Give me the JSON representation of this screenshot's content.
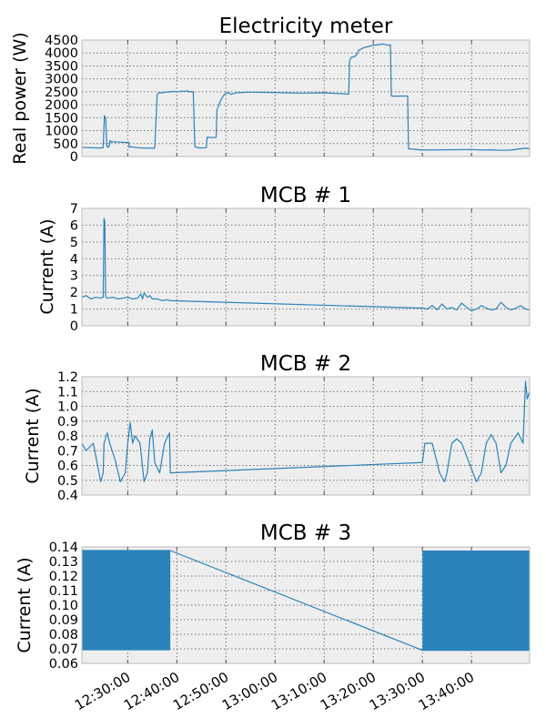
{
  "colors": {
    "series": "#2b83ba",
    "panel_bg": "#eeeeee",
    "grid": "#777777",
    "frame": "#bcbcbc"
  },
  "x_axis": {
    "type": "time",
    "range": [
      "12:20:40",
      "13:51:50"
    ],
    "tick_labels": [
      "12:30:00",
      "12:40:00",
      "12:50:00",
      "13:00:00",
      "13:10:00",
      "13:20:00",
      "13:30:00",
      "13:40:00"
    ]
  },
  "chart_data": [
    {
      "type": "line",
      "title": "Electricity meter",
      "ylabel": "Real power (W)",
      "ylim": [
        0,
        4500
      ],
      "yticks": [
        "0",
        "500",
        "1000",
        "1500",
        "2000",
        "2500",
        "3000",
        "3500",
        "4000",
        "4500"
      ],
      "grid": true,
      "series": [
        {
          "x": [
            "12:20:40",
            "12:24:30",
            "12:25:00",
            "12:25:15",
            "12:25:30",
            "12:25:45",
            "12:26:10",
            "12:26:25",
            "12:26:40",
            "12:27:00",
            "12:29:50",
            "12:30:10",
            "12:30:20",
            "12:30:40",
            "12:32:00",
            "12:33:00",
            "12:35:30",
            "12:36:00",
            "12:36:20",
            "12:37:30",
            "12:37:40",
            "12:38:20",
            "12:38:30",
            "12:39:00",
            "12:39:20",
            "12:40:00",
            "12:41:00",
            "12:41:30",
            "12:42:10",
            "12:42:30",
            "12:43:20",
            "12:43:40",
            "12:44:30",
            "12:46:00",
            "12:46:10",
            "12:47:00",
            "12:48:00",
            "12:48:10",
            "12:49:00",
            "12:49:30",
            "12:49:45",
            "12:50:10",
            "12:50:30",
            "12:51:00",
            "12:52:00",
            "12:55:00",
            "13:00:00",
            "13:05:00",
            "13:10:00",
            "13:14:00",
            "13:15:00",
            "13:15:10",
            "13:15:30",
            "13:16:00",
            "13:16:30",
            "13:17:00",
            "13:17:30",
            "13:18:00",
            "13:19:00",
            "13:20:00",
            "13:21:00",
            "13:22:00",
            "13:23:00",
            "13:23:30",
            "13:23:40",
            "13:24:00",
            "13:27:00",
            "13:27:10",
            "13:30:00",
            "13:35:00",
            "13:40:00",
            "13:42:00",
            "13:44:00",
            "13:46:00",
            "13:48:00",
            "13:50:00",
            "13:51:00",
            "13:51:50"
          ],
          "y": [
            350,
            330,
            340,
            1580,
            1500,
            380,
            360,
            620,
            550,
            570,
            540,
            560,
            350,
            380,
            340,
            330,
            320,
            2400,
            2460,
            2470,
            2500,
            2480,
            2510,
            2500,
            2520,
            2490,
            2530,
            2510,
            2540,
            2500,
            2510,
            380,
            330,
            340,
            750,
            730,
            740,
            1800,
            2200,
            2350,
            2420,
            2440,
            2480,
            2400,
            2460,
            2490,
            2470,
            2450,
            2460,
            2420,
            2410,
            3700,
            3830,
            3850,
            3900,
            4100,
            4150,
            4200,
            4250,
            4300,
            4320,
            4350,
            4300,
            4310,
            2350,
            2330,
            2340,
            300,
            250,
            260,
            270,
            250,
            260,
            240,
            250,
            300,
            320,
            300
          ]
        }
      ]
    },
    {
      "type": "line",
      "title": "MCB # 1",
      "ylabel": "Current (A)",
      "ylim": [
        0,
        7
      ],
      "yticks": [
        "0",
        "1",
        "2",
        "3",
        "4",
        "5",
        "6",
        "7"
      ],
      "grid": true,
      "series": [
        {
          "x": [
            "12:20:40",
            "12:21:30",
            "12:22:30",
            "12:23:30",
            "12:24:30",
            "12:25:00",
            "12:25:10",
            "12:25:20",
            "12:25:30",
            "12:26:00",
            "12:27:00",
            "12:28:00",
            "12:29:00",
            "12:30:00",
            "12:31:00",
            "12:32:00",
            "12:32:40",
            "12:33:00",
            "12:33:20",
            "12:34:00",
            "12:34:30",
            "12:35:00",
            "12:36:00",
            "12:37:00",
            "12:38:00",
            "12:38:40",
            "13:30:00",
            "13:31:00",
            "13:32:00",
            "13:33:00",
            "13:34:00",
            "13:35:00",
            "13:36:00",
            "13:37:00",
            "13:38:00",
            "13:39:00",
            "13:40:00",
            "13:41:00",
            "13:42:00",
            "13:43:00",
            "13:44:00",
            "13:45:00",
            "13:46:00",
            "13:47:00",
            "13:48:00",
            "13:49:00",
            "13:50:00",
            "13:51:00",
            "13:51:50"
          ],
          "y": [
            1.7,
            1.8,
            1.6,
            1.7,
            1.65,
            1.7,
            6.4,
            6.2,
            1.7,
            1.65,
            1.7,
            1.6,
            1.65,
            1.7,
            1.6,
            1.65,
            1.9,
            1.6,
            1.95,
            1.7,
            1.8,
            1.6,
            1.6,
            1.5,
            1.55,
            1.5,
            1.05,
            1.0,
            1.2,
            0.95,
            1.3,
            1.0,
            1.1,
            0.95,
            1.35,
            1.1,
            0.9,
            1.0,
            1.2,
            1.05,
            0.95,
            1.0,
            1.4,
            1.1,
            0.95,
            1.05,
            1.2,
            1.0,
            0.95
          ]
        }
      ]
    },
    {
      "type": "line",
      "title": "MCB # 2",
      "ylabel": "Current (A)",
      "ylim": [
        0.4,
        1.2
      ],
      "yticks": [
        "0.4",
        "0.5",
        "0.6",
        "0.7",
        "0.8",
        "0.9",
        "1.0",
        "1.1",
        "1.2"
      ],
      "grid": true,
      "series": [
        {
          "x": [
            "12:20:40",
            "12:21:30",
            "12:23:00",
            "12:24:30",
            "12:25:00",
            "12:25:10",
            "12:25:50",
            "12:26:20",
            "12:27:30",
            "12:28:30",
            "12:29:30",
            "12:30:00",
            "12:30:30",
            "12:31:00",
            "12:31:30",
            "12:32:30",
            "12:33:20",
            "12:34:00",
            "12:34:30",
            "12:35:00",
            "12:35:30",
            "12:36:30",
            "12:37:30",
            "12:38:30",
            "12:38:40",
            "13:30:00",
            "13:30:30",
            "13:32:00",
            "13:33:30",
            "13:34:30",
            "13:35:00",
            "13:36:00",
            "13:37:00",
            "13:38:00",
            "13:39:30",
            "13:41:00",
            "13:42:00",
            "13:43:00",
            "13:44:00",
            "13:45:00",
            "13:46:00",
            "13:47:00",
            "13:48:00",
            "13:49:30",
            "13:50:30",
            "13:51:00",
            "13:51:20",
            "13:51:50"
          ],
          "y": [
            0.75,
            0.7,
            0.75,
            0.49,
            0.55,
            0.75,
            0.82,
            0.75,
            0.63,
            0.49,
            0.55,
            0.75,
            0.89,
            0.75,
            0.8,
            0.75,
            0.49,
            0.55,
            0.78,
            0.84,
            0.62,
            0.55,
            0.75,
            0.82,
            0.55,
            0.62,
            0.75,
            0.75,
            0.55,
            0.49,
            0.55,
            0.75,
            0.78,
            0.75,
            0.62,
            0.49,
            0.55,
            0.75,
            0.81,
            0.75,
            0.55,
            0.6,
            0.75,
            0.82,
            0.75,
            1.17,
            1.05,
            1.1
          ]
        }
      ]
    },
    {
      "type": "line",
      "title": "MCB # 3",
      "ylabel": "Current (A)",
      "ylim": [
        0.06,
        0.14
      ],
      "yticks": [
        "0.06",
        "0.07",
        "0.08",
        "0.09",
        "0.10",
        "0.11",
        "0.12",
        "0.13",
        "0.14"
      ],
      "grid": true,
      "series": [
        {
          "x": [
            "12:20:40",
            "12:38:40",
            "13:30:00",
            "13:51:50"
          ],
          "y": [
            0.1375,
            0.1375,
            0.069,
            0.069
          ],
          "band_segments": [
            [
              "12:20:40",
              "12:38:40"
            ],
            [
              "13:30:00",
              "13:51:50"
            ]
          ],
          "band_range": [
            0.069,
            0.1375
          ]
        }
      ]
    }
  ]
}
